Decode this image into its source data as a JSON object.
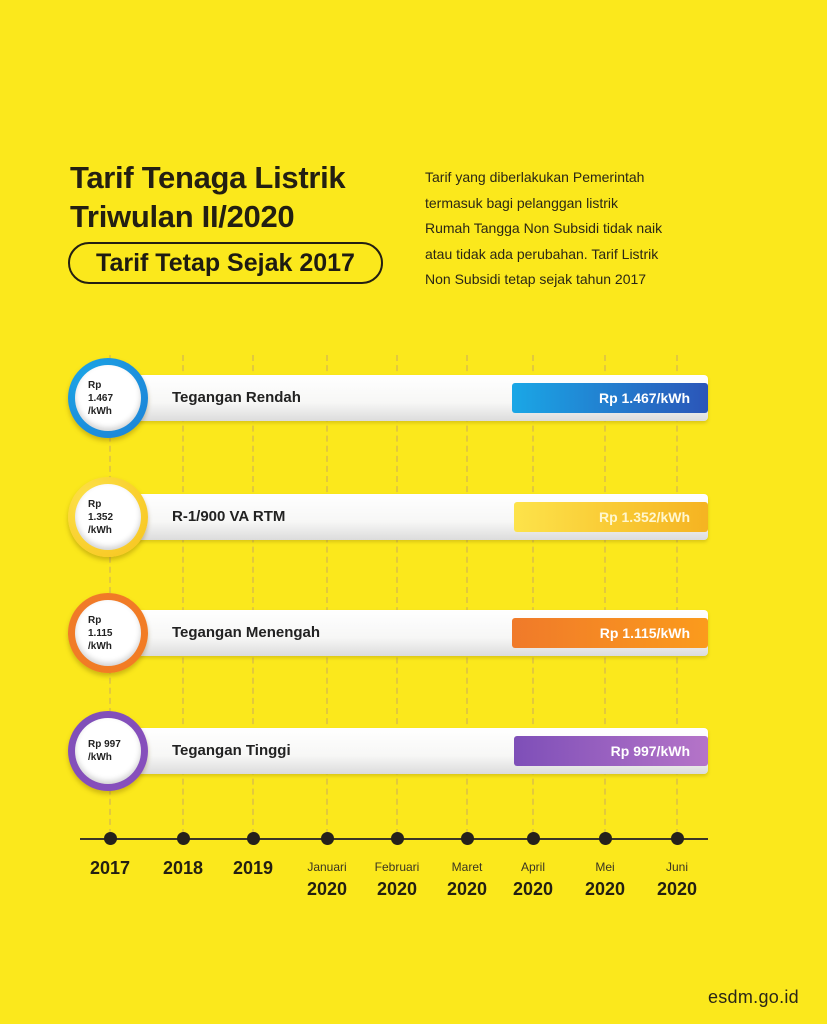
{
  "header": {
    "title_line1": "Tarif Tenaga Listrik",
    "title_line2": "Triwulan II/2020",
    "badge": "Tarif Tetap Sejak 2017"
  },
  "description_lines": [
    "Tarif yang diberlakukan Pemerintah",
    "termasuk bagi pelanggan listrik",
    "Rumah Tangga Non Subsidi tidak naik",
    "atau tidak ada perubahan. Tarif Listrik",
    "Non Subsidi tetap sejak tahun 2017"
  ],
  "chart_data": {
    "type": "bar",
    "x_ticks": [
      {
        "top": "",
        "label": "2017"
      },
      {
        "top": "",
        "label": "2018"
      },
      {
        "top": "",
        "label": "2019"
      },
      {
        "top": "Januari",
        "label": "2020"
      },
      {
        "top": "Februari",
        "label": "2020"
      },
      {
        "top": "Maret",
        "label": "2020"
      },
      {
        "top": "April",
        "label": "2020"
      },
      {
        "top": "Mei",
        "label": "2020"
      },
      {
        "top": "Juni",
        "label": "2020"
      }
    ],
    "series": [
      {
        "name": "Tegangan Rendah",
        "value": 1467,
        "unit": "Rp/kWh",
        "circle_line1": "Rp 1.467",
        "circle_line2": "/kWh",
        "value_label": "Rp 1.467/kWh",
        "color_from": "#1aa7e6",
        "color_to": "#2b55b8",
        "ring_color": "#1e7fd6"
      },
      {
        "name": "R-1/900 VA RTM",
        "value": 1352,
        "unit": "Rp/kWh",
        "circle_line1": "Rp 1.352",
        "circle_line2": "/kWh",
        "value_label": "Rp 1.352/kWh",
        "color_from": "#fde34a",
        "color_to": "#f5b321",
        "ring_color": "#f7c21c"
      },
      {
        "name": "Tegangan Menengah",
        "value": 1115,
        "unit": "Rp/kWh",
        "circle_line1": "Rp 1.115",
        "circle_line2": "/kWh",
        "value_label": "Rp 1.115/kWh",
        "color_from": "#f07a2a",
        "color_to": "#fb9b1c",
        "ring_color": "#f27d22"
      },
      {
        "name": "Tegangan Tinggi",
        "value": 997,
        "unit": "Rp/kWh",
        "circle_line1": "Rp 997",
        "circle_line2": "/kWh",
        "value_label": "Rp 997/kWh",
        "color_from": "#7e4fb8",
        "color_to": "#b574c8",
        "ring_color": "#8a4fbd"
      }
    ]
  },
  "footer": "esdm.go.id"
}
